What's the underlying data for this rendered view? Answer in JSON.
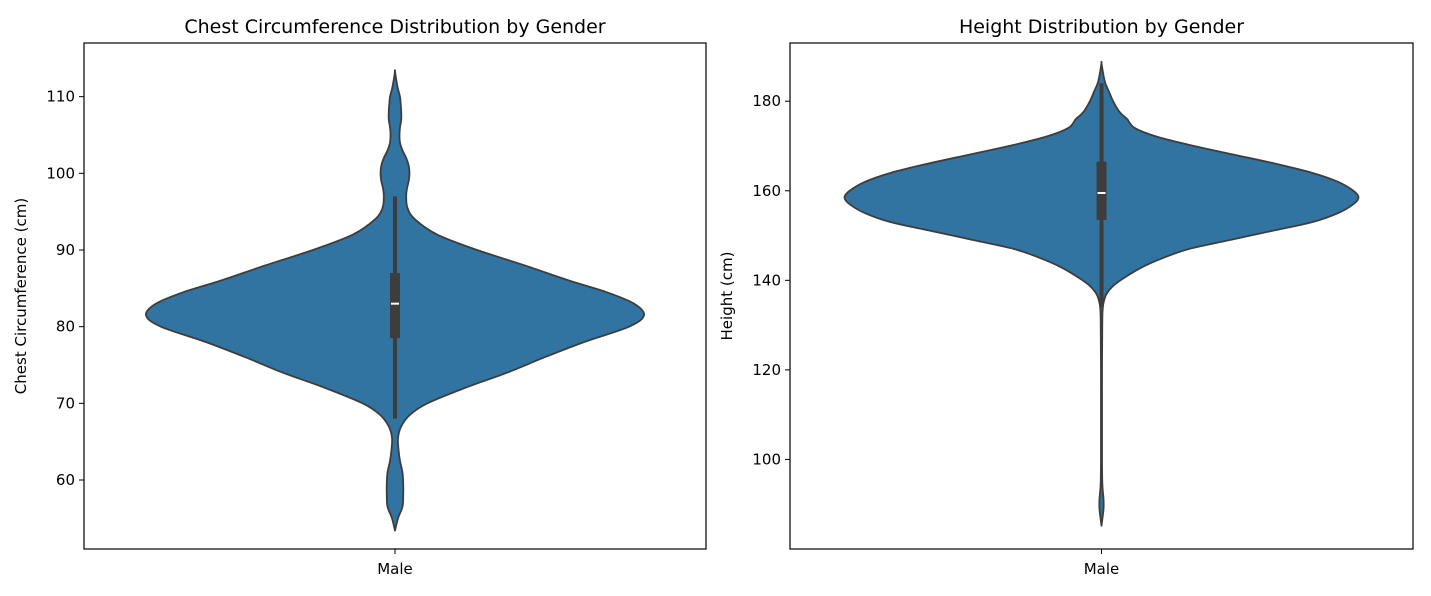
{
  "chart_data": [
    {
      "type": "violin",
      "title": "Chest Circumference Distribution by Gender",
      "xlabel": "",
      "ylabel": "Chest Circumference (cm)",
      "categories": [
        "Male"
      ],
      "ylim": [
        51,
        117
      ],
      "yticks": [
        60,
        70,
        80,
        90,
        100,
        110
      ],
      "color": "#3274a1",
      "edge_color": "#3d3d3d",
      "density": [
        [
          53.4,
          0
        ],
        [
          55,
          0.012
        ],
        [
          56.5,
          0.03
        ],
        [
          58,
          0.033
        ],
        [
          59.5,
          0.033
        ],
        [
          61,
          0.03
        ],
        [
          62.5,
          0.02
        ],
        [
          64,
          0.014
        ],
        [
          65.5,
          0.012
        ],
        [
          67,
          0.025
        ],
        [
          68.5,
          0.06
        ],
        [
          70,
          0.13
        ],
        [
          72,
          0.28
        ],
        [
          74,
          0.45
        ],
        [
          76,
          0.6
        ],
        [
          78,
          0.76
        ],
        [
          80,
          0.94
        ],
        [
          81.5,
          1.0
        ],
        [
          83,
          0.96
        ],
        [
          84.5,
          0.85
        ],
        [
          86,
          0.7
        ],
        [
          88,
          0.52
        ],
        [
          90,
          0.33
        ],
        [
          92,
          0.17
        ],
        [
          94,
          0.08
        ],
        [
          95.5,
          0.05
        ],
        [
          97,
          0.045
        ],
        [
          98,
          0.048
        ],
        [
          99,
          0.055
        ],
        [
          100,
          0.058
        ],
        [
          101,
          0.055
        ],
        [
          102,
          0.045
        ],
        [
          103,
          0.03
        ],
        [
          104,
          0.02
        ],
        [
          105,
          0.018
        ],
        [
          106,
          0.02
        ],
        [
          107,
          0.025
        ],
        [
          108,
          0.025
        ],
        [
          109,
          0.023
        ],
        [
          110,
          0.02
        ],
        [
          111,
          0.012
        ],
        [
          112,
          0.006
        ],
        [
          113.3,
          0
        ]
      ],
      "box": {
        "q1": 78.5,
        "median": 83,
        "q3": 87,
        "whisker_low": 68,
        "whisker_high": 97
      }
    },
    {
      "type": "violin",
      "title": "Height Distribution by Gender",
      "xlabel": "",
      "ylabel": "Height (cm)",
      "categories": [
        "Male"
      ],
      "ylim": [
        80,
        193
      ],
      "yticks": [
        100,
        120,
        140,
        160,
        180
      ],
      "color": "#3274a1",
      "edge_color": "#3d3d3d",
      "density": [
        [
          85.2,
          0
        ],
        [
          87,
          0.004
        ],
        [
          89,
          0.008
        ],
        [
          91,
          0.008
        ],
        [
          93,
          0.005
        ],
        [
          95,
          0.003
        ],
        [
          100,
          0.002
        ],
        [
          110,
          0.002
        ],
        [
          120,
          0.002
        ],
        [
          130,
          0.003
        ],
        [
          133,
          0.004
        ],
        [
          135,
          0.008
        ],
        [
          137,
          0.02
        ],
        [
          139,
          0.05
        ],
        [
          141,
          0.1
        ],
        [
          143,
          0.16
        ],
        [
          145,
          0.24
        ],
        [
          147,
          0.34
        ],
        [
          149,
          0.5
        ],
        [
          151,
          0.66
        ],
        [
          153,
          0.82
        ],
        [
          155,
          0.92
        ],
        [
          157,
          0.98
        ],
        [
          158.5,
          1.0
        ],
        [
          160,
          0.98
        ],
        [
          162,
          0.92
        ],
        [
          164,
          0.82
        ],
        [
          166,
          0.68
        ],
        [
          168,
          0.52
        ],
        [
          170,
          0.36
        ],
        [
          172,
          0.22
        ],
        [
          174,
          0.13
        ],
        [
          176,
          0.1
        ],
        [
          177,
          0.08
        ],
        [
          178,
          0.065
        ],
        [
          180,
          0.045
        ],
        [
          182,
          0.03
        ],
        [
          184,
          0.015
        ],
        [
          186,
          0.007
        ],
        [
          188.5,
          0
        ]
      ],
      "box": {
        "q1": 153.5,
        "median": 159.5,
        "q3": 166.5,
        "whisker_low": 134,
        "whisker_high": 184
      }
    }
  ]
}
